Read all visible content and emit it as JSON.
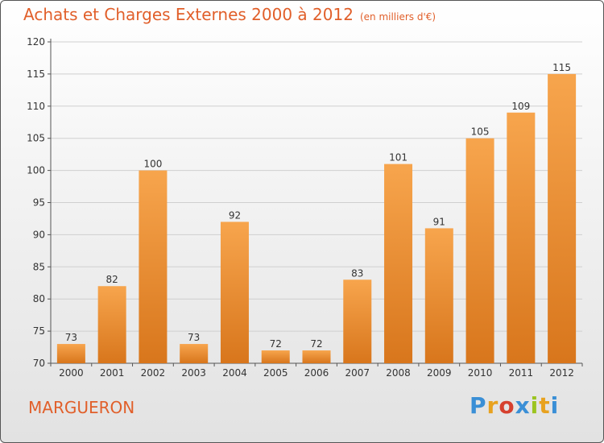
{
  "title": "Achats et Charges Externes 2000 à 2012",
  "unit": "(en milliers d'€)",
  "subject": "MARGUERON",
  "logo": {
    "text": "Proxiti",
    "letter_colors": [
      "#3a8fd6",
      "#e8a21f",
      "#d6402e",
      "#3a8fd6",
      "#9bc420",
      "#e8a21f",
      "#3a8fd6"
    ]
  },
  "colors": {
    "bar_top": "#f7a54d",
    "bar_bottom": "#d8761c",
    "text": "#e15f2a"
  },
  "chart_data": {
    "type": "bar",
    "categories": [
      "2000",
      "2001",
      "2002",
      "2003",
      "2004",
      "2005",
      "2006",
      "2007",
      "2008",
      "2009",
      "2010",
      "2011",
      "2012"
    ],
    "values": [
      73,
      82,
      100,
      73,
      92,
      72,
      72,
      83,
      101,
      91,
      105,
      109,
      115
    ],
    "ylim": [
      70,
      120
    ],
    "yticks": [
      70,
      75,
      80,
      85,
      90,
      95,
      100,
      105,
      110,
      115,
      120
    ],
    "grid": true,
    "xlabel": "",
    "ylabel": ""
  }
}
